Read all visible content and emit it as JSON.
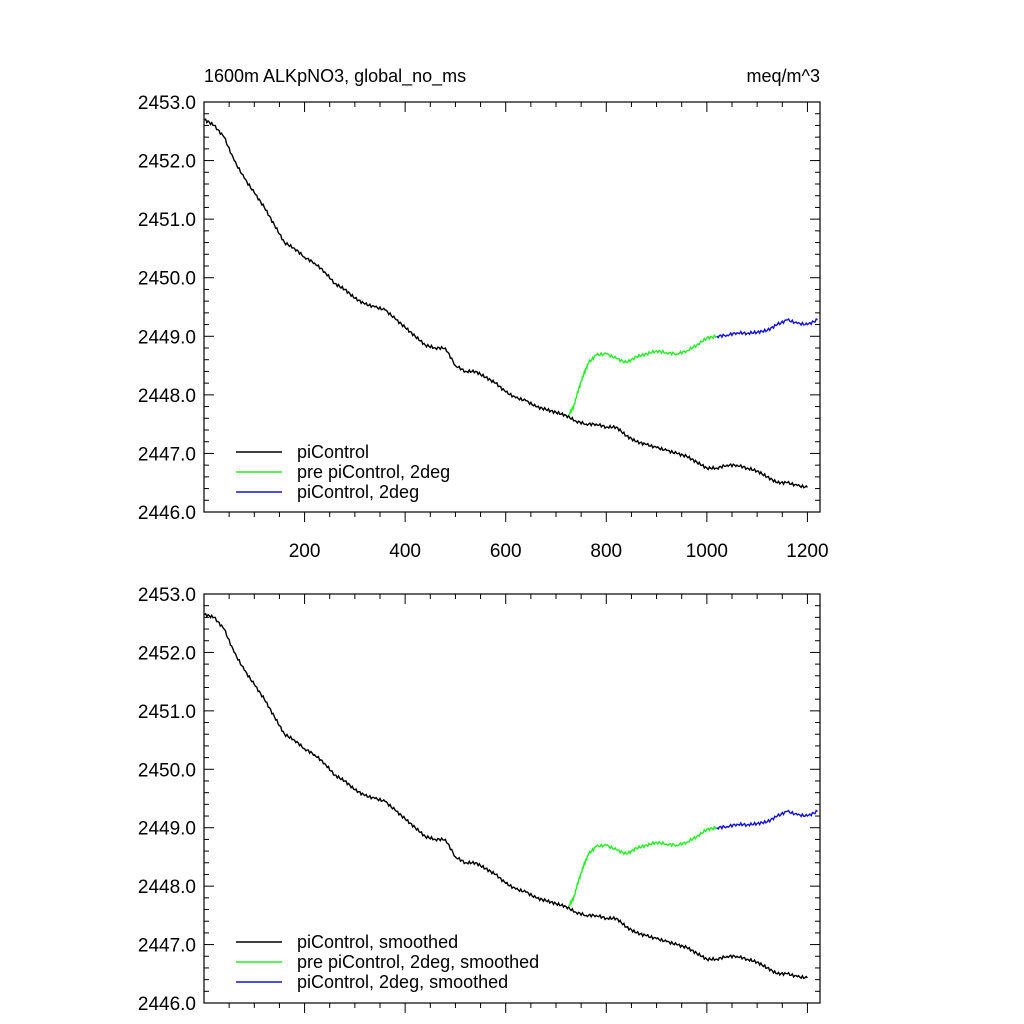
{
  "chart_data": [
    {
      "type": "line",
      "title_left": "1600m ALKpNO3, global_no_ms",
      "title_right": "meq/m^3",
      "xlabel": "",
      "ylabel": "",
      "xlim": [
        0,
        1225
      ],
      "ylim": [
        2446.0,
        2453.0
      ],
      "yticks": [
        2446.0,
        2447.0,
        2448.0,
        2449.0,
        2450.0,
        2451.0,
        2452.0,
        2453.0
      ],
      "ytick_labels": [
        "2446.0",
        "2447.0",
        "2448.0",
        "2449.0",
        "2450.0",
        "2451.0",
        "2452.0",
        "2453.0"
      ],
      "xticks": [
        200,
        400,
        600,
        800,
        1000,
        1200
      ],
      "xtick_labels": [
        "200",
        "400",
        "600",
        "800",
        "1000",
        "1200"
      ],
      "grid": false,
      "legend_position": "bottom-left",
      "series": [
        {
          "name": "piControl",
          "color": "#000000",
          "x": [
            1,
            20,
            40,
            60,
            80,
            100,
            120,
            140,
            160,
            180,
            200,
            220,
            240,
            260,
            280,
            300,
            320,
            340,
            360,
            380,
            400,
            420,
            440,
            460,
            480,
            500,
            520,
            540,
            560,
            580,
            600,
            620,
            640,
            660,
            680,
            700,
            720,
            740,
            760,
            780,
            800,
            820,
            840,
            860,
            880,
            900,
            920,
            940,
            960,
            980,
            1000,
            1020,
            1040,
            1060,
            1080,
            1100,
            1120,
            1140,
            1160,
            1180,
            1200
          ],
          "y": [
            2452.7,
            2452.6,
            2452.4,
            2452.0,
            2451.7,
            2451.45,
            2451.2,
            2450.9,
            2450.6,
            2450.5,
            2450.35,
            2450.25,
            2450.1,
            2449.9,
            2449.8,
            2449.65,
            2449.55,
            2449.5,
            2449.45,
            2449.3,
            2449.15,
            2449.0,
            2448.85,
            2448.8,
            2448.8,
            2448.5,
            2448.4,
            2448.4,
            2448.3,
            2448.2,
            2448.05,
            2447.95,
            2447.9,
            2447.8,
            2447.75,
            2447.7,
            2447.65,
            2447.55,
            2447.5,
            2447.5,
            2447.45,
            2447.45,
            2447.3,
            2447.2,
            2447.15,
            2447.1,
            2447.05,
            2447.0,
            2446.95,
            2446.85,
            2446.75,
            2446.75,
            2446.8,
            2446.8,
            2446.75,
            2446.7,
            2446.6,
            2446.5,
            2446.5,
            2446.45,
            2446.42
          ]
        },
        {
          "name": "pre piControl, 2deg",
          "color": "#22ee22",
          "x": [
            725,
            735,
            745,
            755,
            765,
            780,
            800,
            820,
            840,
            860,
            880,
            900,
            920,
            940,
            960,
            980,
            1000,
            1020
          ],
          "y": [
            2447.65,
            2447.8,
            2448.1,
            2448.35,
            2448.55,
            2448.68,
            2448.7,
            2448.62,
            2448.55,
            2448.65,
            2448.7,
            2448.75,
            2448.72,
            2448.7,
            2448.75,
            2448.85,
            2448.97,
            2449.0
          ]
        },
        {
          "name": "piControl, 2deg",
          "color": "#1010dd",
          "x": [
            1020,
            1040,
            1060,
            1080,
            1100,
            1120,
            1140,
            1160,
            1180,
            1200,
            1220
          ],
          "y": [
            2449.0,
            2449.02,
            2449.06,
            2449.05,
            2449.07,
            2449.1,
            2449.2,
            2449.28,
            2449.22,
            2449.2,
            2449.28
          ]
        }
      ]
    },
    {
      "type": "line",
      "xlabel": "",
      "ylabel": "",
      "xlim": [
        0,
        1225
      ],
      "ylim": [
        2446.0,
        2453.0
      ],
      "yticks": [
        2446.0,
        2447.0,
        2448.0,
        2449.0,
        2450.0,
        2451.0,
        2452.0,
        2453.0
      ],
      "ytick_labels": [
        "2446.0",
        "2447.0",
        "2448.0",
        "2449.0",
        "2450.0",
        "2451.0",
        "2452.0",
        "2453.0"
      ],
      "xticks": [
        200,
        400,
        600,
        800,
        1000,
        1200
      ],
      "grid": false,
      "legend_position": "bottom-left",
      "series": [
        {
          "name": "piControl, smoothed",
          "color": "#000000",
          "x": [
            1,
            20,
            40,
            60,
            80,
            100,
            120,
            140,
            160,
            180,
            200,
            220,
            240,
            260,
            280,
            300,
            320,
            340,
            360,
            380,
            400,
            420,
            440,
            460,
            480,
            500,
            520,
            540,
            560,
            580,
            600,
            620,
            640,
            660,
            680,
            700,
            720,
            740,
            760,
            780,
            800,
            820,
            840,
            860,
            880,
            900,
            920,
            940,
            960,
            980,
            1000,
            1020,
            1040,
            1060,
            1080,
            1100,
            1120,
            1140,
            1160,
            1180,
            1200
          ],
          "y": [
            2452.65,
            2452.6,
            2452.4,
            2452.0,
            2451.7,
            2451.45,
            2451.2,
            2450.9,
            2450.6,
            2450.5,
            2450.35,
            2450.25,
            2450.1,
            2449.9,
            2449.8,
            2449.65,
            2449.55,
            2449.5,
            2449.45,
            2449.3,
            2449.15,
            2449.0,
            2448.85,
            2448.8,
            2448.8,
            2448.5,
            2448.4,
            2448.4,
            2448.3,
            2448.2,
            2448.05,
            2447.95,
            2447.9,
            2447.8,
            2447.75,
            2447.7,
            2447.65,
            2447.55,
            2447.5,
            2447.5,
            2447.45,
            2447.45,
            2447.3,
            2447.2,
            2447.15,
            2447.1,
            2447.05,
            2447.0,
            2446.95,
            2446.85,
            2446.75,
            2446.75,
            2446.8,
            2446.8,
            2446.75,
            2446.7,
            2446.6,
            2446.5,
            2446.5,
            2446.45,
            2446.43
          ]
        },
        {
          "name": "pre piControl, 2deg, smoothed",
          "color": "#22ee22",
          "x": [
            725,
            735,
            745,
            755,
            765,
            780,
            800,
            820,
            840,
            860,
            880,
            900,
            920,
            940,
            960,
            980,
            1000,
            1020
          ],
          "y": [
            2447.65,
            2447.8,
            2448.1,
            2448.35,
            2448.55,
            2448.68,
            2448.7,
            2448.62,
            2448.55,
            2448.65,
            2448.7,
            2448.75,
            2448.72,
            2448.7,
            2448.75,
            2448.85,
            2448.97,
            2449.0
          ]
        },
        {
          "name": "piControl, 2deg, smoothed",
          "color": "#1010dd",
          "x": [
            1020,
            1040,
            1060,
            1080,
            1100,
            1120,
            1140,
            1160,
            1180,
            1200,
            1220
          ],
          "y": [
            2449.0,
            2449.02,
            2449.06,
            2449.05,
            2449.07,
            2449.1,
            2449.2,
            2449.28,
            2449.22,
            2449.2,
            2449.28
          ]
        }
      ]
    }
  ]
}
